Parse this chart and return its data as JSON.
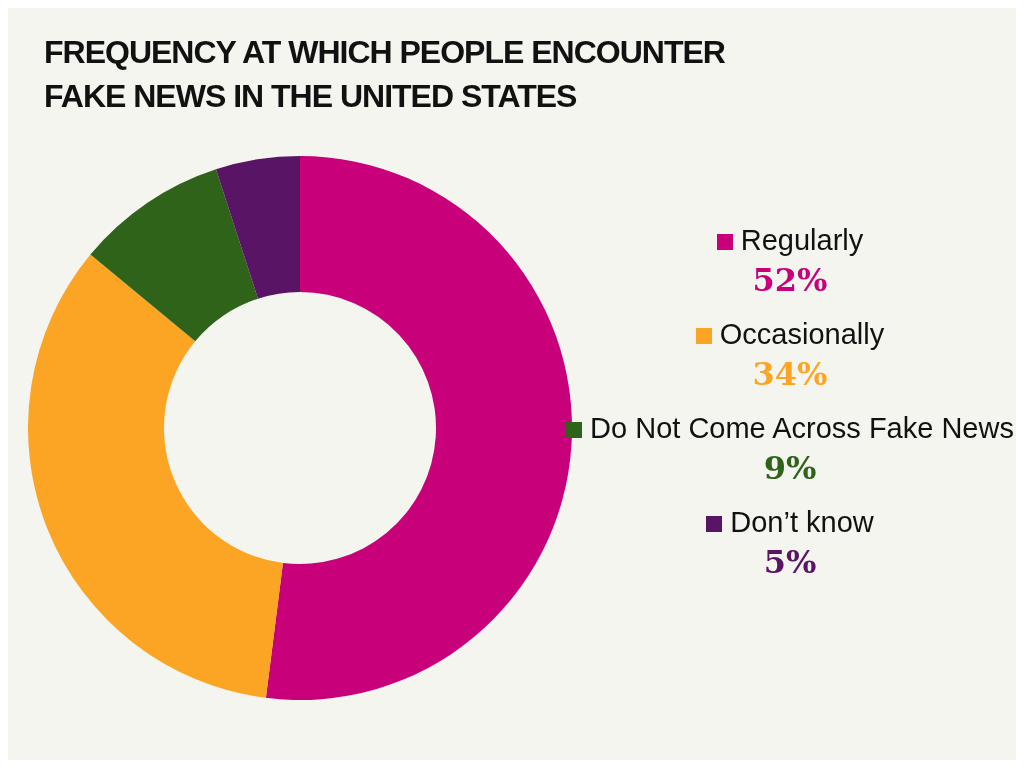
{
  "chart_data": {
    "type": "donut",
    "title": "FREQUENCY AT WHICH PEOPLE ENCOUNTER FAKE NEWS IN THE UNITED STATES",
    "categories": [
      "Regularly",
      "Occasionally",
      "Do Not Come Across Fake News",
      "Don’t know"
    ],
    "values": [
      52,
      34,
      9,
      5
    ],
    "colors": [
      "#c8007a",
      "#fca524",
      "#2e6319",
      "#5a1465"
    ],
    "value_labels": [
      "52%",
      "34%",
      "9%",
      "5%"
    ],
    "legend": "right"
  }
}
